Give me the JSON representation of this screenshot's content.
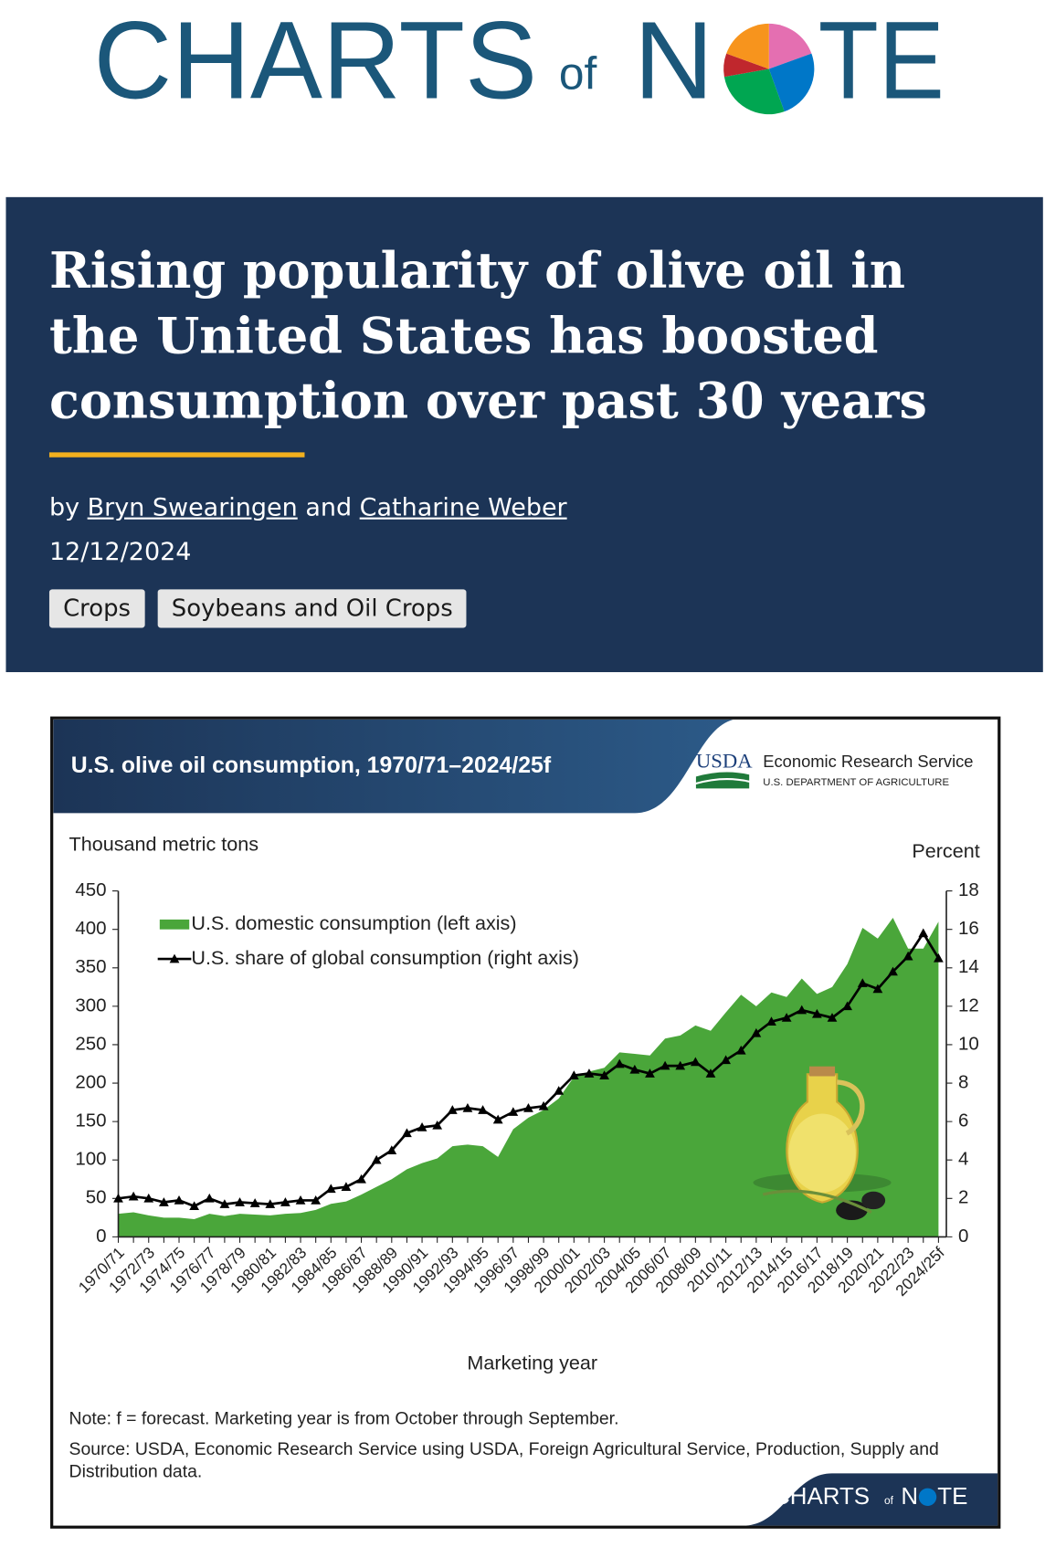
{
  "logo": {
    "charts": "CHARTS",
    "of": "of",
    "n": "N",
    "te": "TE"
  },
  "article": {
    "title_lines": [
      "Rising popularity of olive oil in",
      "the United States has boosted",
      "consumption over past 30 years"
    ],
    "by": "by",
    "author1": "Bryn Swearingen",
    "and": "and",
    "author2": "Catharine Weber",
    "date": "12/12/2024",
    "tags": [
      "Crops",
      "Soybeans and Oil Crops"
    ]
  },
  "usda": {
    "mark": "USDA",
    "agency": "Economic Research Service",
    "department": "U.S. DEPARTMENT OF AGRICULTURE"
  },
  "chart_data": {
    "type": "area",
    "title": "U.S. olive oil consumption, 1970/71–2024/25f",
    "ylabel": "Thousand metric tons",
    "y2label": "Percent",
    "xlabel": "Marketing year",
    "note": "Note: f = forecast. Marketing year is from October through September.",
    "source": "Source: USDA, Economic Research Service using USDA,  Foreign Agricultural Service, Production, Supply and Distribution data.",
    "categories": [
      "1970/71",
      null,
      "1972/73",
      null,
      "1974/75",
      null,
      "1976/77",
      null,
      "1978/79",
      null,
      "1980/81",
      null,
      "1982/83",
      null,
      "1984/85",
      null,
      "1986/87",
      null,
      "1988/89",
      null,
      "1990/91",
      null,
      "1992/93",
      null,
      "1994/95",
      null,
      "1996/97",
      null,
      "1998/99",
      null,
      "2000/01",
      null,
      "2002/03",
      null,
      "2004/05",
      null,
      "2006/07",
      null,
      "2008/09",
      null,
      "2010/11",
      null,
      "2012/13",
      null,
      "2014/15",
      null,
      "2016/17",
      null,
      "2018/19",
      null,
      "2020/21",
      null,
      "2022/23",
      null,
      "2024/25f"
    ],
    "series": [
      {
        "name": "U.S. domestic consumption (left axis)",
        "type": "area",
        "color": "#4aa63a",
        "values": [
          30,
          32,
          28,
          25,
          25,
          23,
          30,
          27,
          30,
          29,
          28,
          30,
          31,
          35,
          43,
          46,
          55,
          65,
          75,
          88,
          96,
          102,
          118,
          120,
          118,
          104,
          140,
          155,
          165,
          180,
          208,
          215,
          220,
          240,
          238,
          236,
          258,
          262,
          275,
          268,
          292,
          315,
          300,
          318,
          312,
          336,
          316,
          325,
          355,
          402,
          388,
          415,
          375,
          375,
          410
        ]
      },
      {
        "name": "U.S. share of global consumption (right axis)",
        "type": "line",
        "axis": "y2",
        "color": "#000000",
        "marker": "triangle",
        "values": [
          2.0,
          2.1,
          2.0,
          1.8,
          1.9,
          1.6,
          2.0,
          1.7,
          1.8,
          1.75,
          1.7,
          1.8,
          1.9,
          1.9,
          2.5,
          2.6,
          3.0,
          4.0,
          4.5,
          5.4,
          5.7,
          5.8,
          6.6,
          6.7,
          6.6,
          6.1,
          6.5,
          6.7,
          6.8,
          7.6,
          8.4,
          8.5,
          8.4,
          9.0,
          8.7,
          8.5,
          8.9,
          8.9,
          9.1,
          8.5,
          9.2,
          9.7,
          10.6,
          11.2,
          11.4,
          11.8,
          11.6,
          11.4,
          12.0,
          13.2,
          12.9,
          13.8,
          14.6,
          15.8,
          14.5
        ]
      }
    ],
    "ylim": [
      0,
      450
    ],
    "yticks": [
      0,
      50,
      100,
      150,
      200,
      250,
      300,
      350,
      400,
      450
    ],
    "y2lim": [
      0,
      18
    ],
    "y2ticks": [
      0,
      2,
      4,
      6,
      8,
      10,
      12,
      14,
      16,
      18
    ]
  }
}
